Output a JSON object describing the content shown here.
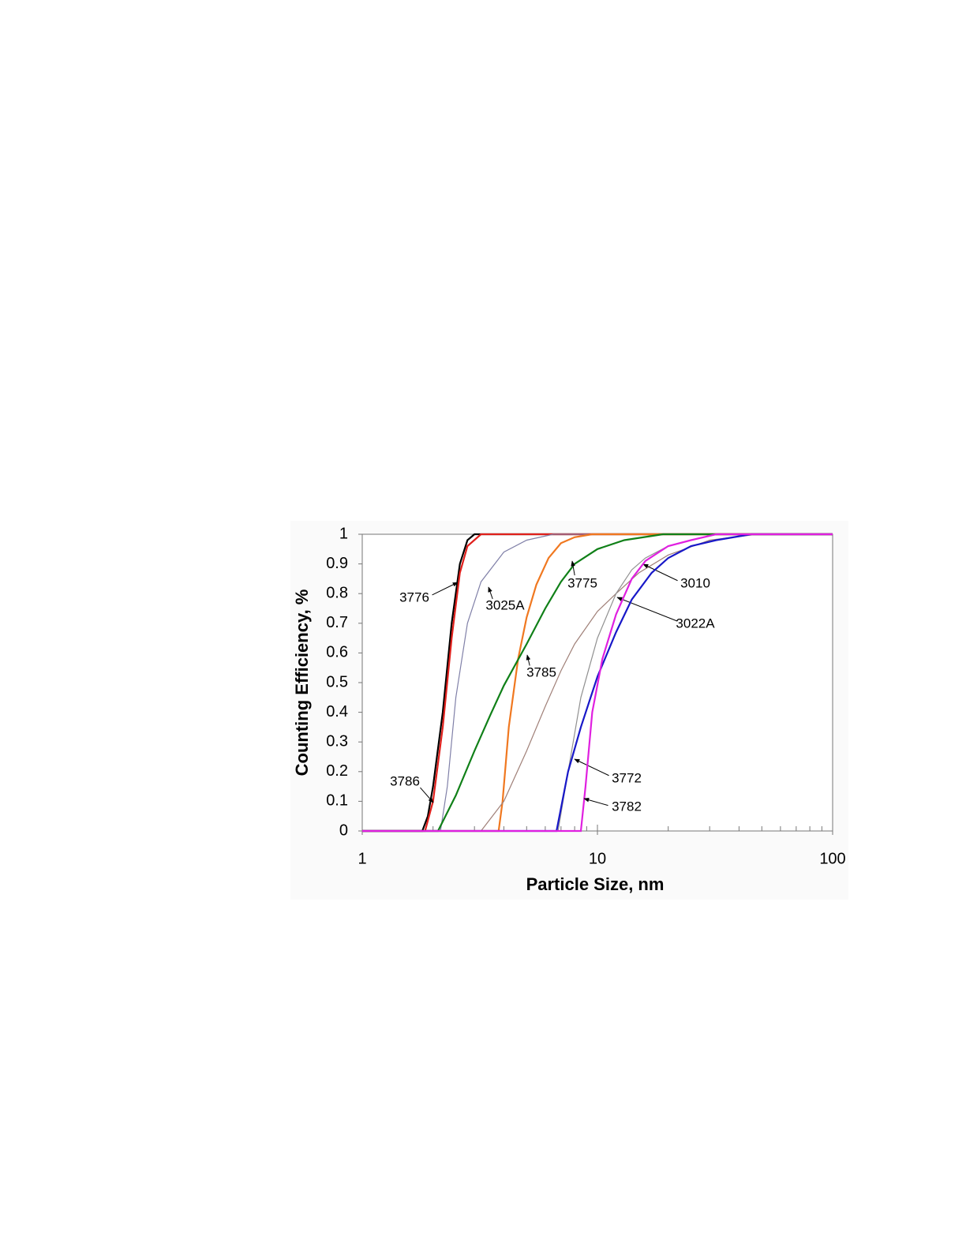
{
  "chart_data": {
    "type": "line",
    "xlabel": "Particle Size, nm",
    "ylabel": "Counting Efficiency, %",
    "xlog": true,
    "grid": false,
    "xlim": [
      1,
      100
    ],
    "xticks": [
      1,
      10,
      100
    ],
    "xminorticks": [
      2,
      3,
      4,
      5,
      6,
      7,
      8,
      9,
      20,
      30,
      40,
      50,
      60,
      70,
      80,
      90
    ],
    "ylim": [
      0,
      1
    ],
    "yticks": [
      0,
      0.1,
      0.2,
      0.3,
      0.4,
      0.5,
      0.6,
      0.7,
      0.8,
      0.9,
      1
    ],
    "series": [
      {
        "name": "3776",
        "color": "#000000",
        "x": [
          1,
          1.8,
          1.9,
          2.0,
          2.2,
          2.4,
          2.6,
          2.8,
          3.0,
          100
        ],
        "values": [
          0,
          0,
          0.05,
          0.15,
          0.4,
          0.7,
          0.9,
          0.98,
          1,
          1
        ]
      },
      {
        "name": "3786",
        "color": "#e0201c",
        "x": [
          1,
          1.85,
          2.0,
          2.2,
          2.4,
          2.6,
          2.8,
          3.2,
          100
        ],
        "values": [
          0,
          0,
          0.1,
          0.35,
          0.65,
          0.87,
          0.96,
          1,
          1
        ]
      },
      {
        "name": "3025A",
        "color": "#8080a8",
        "x": [
          1,
          2.15,
          2.3,
          2.5,
          2.8,
          3.2,
          4,
          5,
          6.5,
          100
        ],
        "values": [
          0,
          0,
          0.15,
          0.45,
          0.7,
          0.84,
          0.94,
          0.98,
          1,
          1
        ]
      },
      {
        "name": "3785",
        "color": "#f07820",
        "x": [
          1,
          3.8,
          3.95,
          4.2,
          4.6,
          5,
          5.5,
          6.2,
          7,
          8,
          9.5,
          100
        ],
        "values": [
          0,
          0,
          0.1,
          0.35,
          0.58,
          0.72,
          0.83,
          0.92,
          0.97,
          0.99,
          1,
          1
        ]
      },
      {
        "name": "3775",
        "color": "#108018",
        "x": [
          1,
          2.1,
          2.5,
          3,
          3.5,
          4,
          5,
          6,
          7,
          8,
          10,
          13,
          19,
          100
        ],
        "values": [
          0,
          0,
          0.12,
          0.27,
          0.39,
          0.49,
          0.63,
          0.75,
          0.84,
          0.9,
          0.95,
          0.98,
          1,
          1
        ]
      },
      {
        "name": "3022A",
        "color": "#a08078",
        "x": [
          1,
          3.2,
          4,
          5,
          6,
          7,
          8,
          10,
          12,
          15,
          20,
          30,
          48,
          100
        ],
        "values": [
          0,
          0,
          0.1,
          0.27,
          0.42,
          0.54,
          0.63,
          0.74,
          0.8,
          0.87,
          0.93,
          0.98,
          1,
          1
        ]
      },
      {
        "name": "3010",
        "color": "#909090",
        "x": [
          1,
          6.8,
          7.5,
          8.5,
          10,
          12,
          14,
          16,
          20,
          25,
          32,
          100
        ],
        "values": [
          0,
          0,
          0.2,
          0.45,
          0.65,
          0.8,
          0.88,
          0.92,
          0.96,
          0.98,
          1,
          1
        ]
      },
      {
        "name": "3772",
        "color": "#1818c8",
        "x": [
          1,
          6.7,
          7.5,
          8.5,
          10,
          12,
          14,
          17,
          20,
          25,
          32,
          45,
          100
        ],
        "values": [
          0,
          0,
          0.2,
          0.35,
          0.52,
          0.67,
          0.78,
          0.87,
          0.92,
          0.96,
          0.98,
          1,
          1
        ]
      },
      {
        "name": "3782",
        "color": "#e020e0",
        "x": [
          1,
          8.5,
          8.9,
          9.5,
          10.5,
          12,
          14,
          16,
          20,
          25,
          32,
          100
        ],
        "values": [
          0,
          0,
          0.15,
          0.4,
          0.58,
          0.73,
          0.85,
          0.91,
          0.96,
          0.98,
          1,
          1
        ]
      }
    ]
  }
}
